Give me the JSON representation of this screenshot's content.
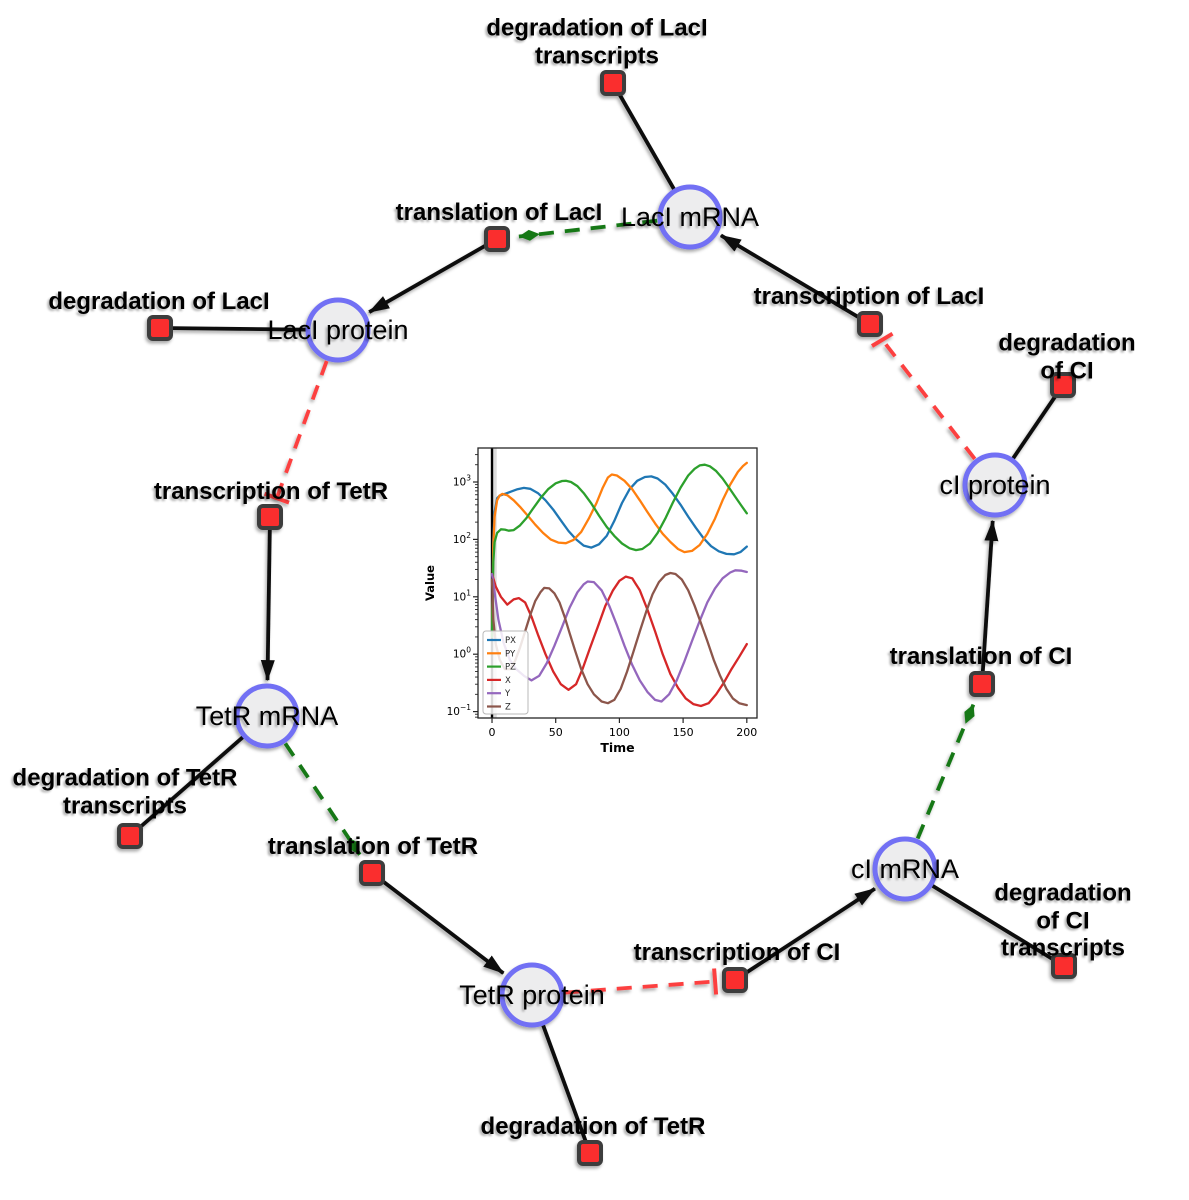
{
  "diagram": {
    "species": [
      {
        "id": "laci-mrna",
        "label": "LacI mRNA"
      },
      {
        "id": "laci-protein",
        "label": "LacI protein"
      },
      {
        "id": "tetr-mrna",
        "label": "TetR mRNA"
      },
      {
        "id": "tetr-protein",
        "label": "TetR protein"
      },
      {
        "id": "ci-mrna",
        "label": "cI mRNA"
      },
      {
        "id": "ci-protein",
        "label": "cI protein"
      }
    ],
    "reactions": [
      {
        "id": "degradation-laci-transcripts",
        "label": "degradation of LacI\ntranscripts"
      },
      {
        "id": "translation-laci",
        "label": "translation of LacI"
      },
      {
        "id": "degradation-laci",
        "label": "degradation of LacI"
      },
      {
        "id": "transcription-laci",
        "label": "transcription of LacI"
      },
      {
        "id": "degradation-ci",
        "label": "degradation of CI"
      },
      {
        "id": "transcription-tetr",
        "label": "transcription of TetR"
      },
      {
        "id": "translation-ci",
        "label": "translation of CI"
      },
      {
        "id": "degradation-tetr-transcripts",
        "label": "degradation of TetR\ntranscripts"
      },
      {
        "id": "translation-tetr",
        "label": "translation of TetR"
      },
      {
        "id": "transcription-ci",
        "label": "transcription of CI"
      },
      {
        "id": "degradation-ci-transcripts",
        "label": "degradation of CI\ntranscripts"
      },
      {
        "id": "degradation-tetr",
        "label": "degradation of TetR"
      }
    ]
  },
  "colors": {
    "edge-black": "#0d0d0d",
    "edge-green": "#187818",
    "edge-red": "#fc4040",
    "species-fill": "#ededee",
    "species-border": "#7270f4",
    "reaction-fill": "#fa2f2f",
    "reaction-border": "#3d3d3d"
  },
  "chart_data": {
    "type": "line",
    "title": "",
    "xlabel": "Time",
    "ylabel": "Value",
    "yscale": "log",
    "x_axis_range": [
      -11,
      208
    ],
    "y_axis_range_exponents": [
      -1.11,
      3.59
    ],
    "x_ticks": [
      0,
      50,
      100,
      150,
      200
    ],
    "y_ticks_exponents": [
      3,
      2,
      1,
      0,
      -1
    ],
    "legend_position": "lower left",
    "grid": false,
    "vline_x": 0,
    "series": [
      {
        "name": "PX",
        "color": "#1f77b4",
        "points": [
          [
            0,
            2
          ],
          [
            1,
            100
          ],
          [
            2,
            300
          ],
          [
            4,
            520
          ],
          [
            6,
            580
          ],
          [
            10,
            620
          ],
          [
            15,
            680
          ],
          [
            20,
            750
          ],
          [
            25,
            790
          ],
          [
            30,
            760
          ],
          [
            36,
            640
          ],
          [
            42,
            480
          ],
          [
            48,
            330
          ],
          [
            54,
            215
          ],
          [
            60,
            140
          ],
          [
            66,
            100
          ],
          [
            72,
            78
          ],
          [
            78,
            72
          ],
          [
            84,
            82
          ],
          [
            90,
            115
          ],
          [
            96,
            210
          ],
          [
            102,
            430
          ],
          [
            108,
            750
          ],
          [
            114,
            1050
          ],
          [
            120,
            1220
          ],
          [
            125,
            1250
          ],
          [
            130,
            1150
          ],
          [
            136,
            900
          ],
          [
            142,
            620
          ],
          [
            148,
            400
          ],
          [
            154,
            250
          ],
          [
            160,
            160
          ],
          [
            166,
            105
          ],
          [
            172,
            76
          ],
          [
            178,
            62
          ],
          [
            184,
            56
          ],
          [
            190,
            55
          ],
          [
            195,
            60
          ],
          [
            200,
            75
          ]
        ]
      },
      {
        "name": "PY",
        "color": "#ff7f0e",
        "points": [
          [
            0,
            2
          ],
          [
            1,
            80
          ],
          [
            2,
            250
          ],
          [
            4,
            480
          ],
          [
            6,
            580
          ],
          [
            8,
            620
          ],
          [
            12,
            590
          ],
          [
            17,
            480
          ],
          [
            22,
            370
          ],
          [
            28,
            260
          ],
          [
            34,
            180
          ],
          [
            40,
            130
          ],
          [
            46,
            100
          ],
          [
            52,
            88
          ],
          [
            58,
            86
          ],
          [
            64,
            98
          ],
          [
            70,
            135
          ],
          [
            76,
            230
          ],
          [
            82,
            430
          ],
          [
            87,
            800
          ],
          [
            91,
            1200
          ],
          [
            94,
            1350
          ],
          [
            98,
            1300
          ],
          [
            104,
            1050
          ],
          [
            110,
            750
          ],
          [
            116,
            480
          ],
          [
            122,
            300
          ],
          [
            128,
            190
          ],
          [
            134,
            125
          ],
          [
            140,
            90
          ],
          [
            146,
            68
          ],
          [
            151,
            60
          ],
          [
            157,
            63
          ],
          [
            163,
            80
          ],
          [
            169,
            125
          ],
          [
            175,
            230
          ],
          [
            181,
            480
          ],
          [
            187,
            900
          ],
          [
            193,
            1500
          ],
          [
            197,
            1900
          ],
          [
            200,
            2150
          ]
        ]
      },
      {
        "name": "PZ",
        "color": "#2ca02c",
        "points": [
          [
            0,
            2
          ],
          [
            1,
            40
          ],
          [
            2,
            90
          ],
          [
            4,
            130
          ],
          [
            7,
            150
          ],
          [
            10,
            148
          ],
          [
            13,
            142
          ],
          [
            17,
            145
          ],
          [
            22,
            175
          ],
          [
            27,
            235
          ],
          [
            32,
            340
          ],
          [
            38,
            520
          ],
          [
            44,
            750
          ],
          [
            50,
            950
          ],
          [
            55,
            1040
          ],
          [
            58,
            1050
          ],
          [
            62,
            1000
          ],
          [
            67,
            850
          ],
          [
            72,
            640
          ],
          [
            78,
            420
          ],
          [
            84,
            260
          ],
          [
            90,
            165
          ],
          [
            96,
            115
          ],
          [
            102,
            85
          ],
          [
            108,
            70
          ],
          [
            113,
            65
          ],
          [
            118,
            68
          ],
          [
            124,
            85
          ],
          [
            130,
            130
          ],
          [
            136,
            230
          ],
          [
            142,
            440
          ],
          [
            148,
            800
          ],
          [
            154,
            1300
          ],
          [
            159,
            1700
          ],
          [
            163,
            1950
          ],
          [
            167,
            2000
          ],
          [
            171,
            1880
          ],
          [
            176,
            1550
          ],
          [
            181,
            1150
          ],
          [
            186,
            800
          ],
          [
            191,
            550
          ],
          [
            196,
            380
          ],
          [
            200,
            285
          ]
        ]
      },
      {
        "name": "X",
        "color": "#d62728",
        "points": [
          [
            0,
            25
          ],
          [
            3,
            15
          ],
          [
            7,
            10
          ],
          [
            12,
            7.3
          ],
          [
            17,
            9
          ],
          [
            21,
            9.5
          ],
          [
            26,
            8
          ],
          [
            31,
            4.5
          ],
          [
            36,
            2.2
          ],
          [
            42,
            1.0
          ],
          [
            48,
            0.5
          ],
          [
            54,
            0.3
          ],
          [
            60,
            0.24
          ],
          [
            66,
            0.3
          ],
          [
            71,
            0.55
          ],
          [
            77,
            1.3
          ],
          [
            83,
            3
          ],
          [
            89,
            7
          ],
          [
            95,
            13
          ],
          [
            100,
            19
          ],
          [
            105,
            22.5
          ],
          [
            110,
            21
          ],
          [
            116,
            13
          ],
          [
            122,
            6
          ],
          [
            128,
            2.5
          ],
          [
            134,
            1.0
          ],
          [
            140,
            0.45
          ],
          [
            146,
            0.26
          ],
          [
            152,
            0.17
          ],
          [
            158,
            0.135
          ],
          [
            164,
            0.125
          ],
          [
            170,
            0.14
          ],
          [
            176,
            0.2
          ],
          [
            182,
            0.32
          ],
          [
            188,
            0.55
          ],
          [
            194,
            0.9
          ],
          [
            200,
            1.5
          ]
        ]
      },
      {
        "name": "Y",
        "color": "#9467bd",
        "points": [
          [
            0,
            25
          ],
          [
            2,
            12
          ],
          [
            5,
            4
          ],
          [
            9,
            1.6
          ],
          [
            14,
            0.8
          ],
          [
            19,
            0.55
          ],
          [
            25,
            0.42
          ],
          [
            31,
            0.35
          ],
          [
            37,
            0.42
          ],
          [
            43,
            0.7
          ],
          [
            49,
            1.4
          ],
          [
            55,
            3
          ],
          [
            61,
            6.5
          ],
          [
            67,
            12
          ],
          [
            72,
            16.5
          ],
          [
            75,
            18.5
          ],
          [
            80,
            18
          ],
          [
            86,
            13
          ],
          [
            92,
            7
          ],
          [
            98,
            3.2
          ],
          [
            104,
            1.4
          ],
          [
            110,
            0.65
          ],
          [
            116,
            0.35
          ],
          [
            122,
            0.22
          ],
          [
            128,
            0.16
          ],
          [
            133,
            0.15
          ],
          [
            139,
            0.2
          ],
          [
            145,
            0.35
          ],
          [
            151,
            0.75
          ],
          [
            157,
            1.7
          ],
          [
            163,
            3.8
          ],
          [
            169,
            8
          ],
          [
            175,
            14
          ],
          [
            181,
            21
          ],
          [
            187,
            26.5
          ],
          [
            191,
            29
          ],
          [
            196,
            28.5
          ],
          [
            200,
            27
          ]
        ]
      },
      {
        "name": "Z",
        "color": "#8c564b",
        "points": [
          [
            0,
            20
          ],
          [
            1,
            4
          ],
          [
            3,
            1.5
          ],
          [
            6,
            0.8
          ],
          [
            10,
            0.55
          ],
          [
            14,
            0.55
          ],
          [
            18,
            0.75
          ],
          [
            22,
            1.3
          ],
          [
            26,
            2.5
          ],
          [
            30,
            4.8
          ],
          [
            34,
            8.5
          ],
          [
            38,
            12
          ],
          [
            41,
            14.3
          ],
          [
            45,
            14
          ],
          [
            49,
            11.5
          ],
          [
            53,
            8
          ],
          [
            57,
            4.5
          ],
          [
            61,
            2.3
          ],
          [
            65,
            1.2
          ],
          [
            70,
            0.55
          ],
          [
            75,
            0.3
          ],
          [
            80,
            0.2
          ],
          [
            86,
            0.15
          ],
          [
            91,
            0.14
          ],
          [
            96,
            0.16
          ],
          [
            101,
            0.25
          ],
          [
            106,
            0.5
          ],
          [
            111,
            1.1
          ],
          [
            116,
            2.5
          ],
          [
            121,
            5.5
          ],
          [
            126,
            11
          ],
          [
            131,
            18
          ],
          [
            136,
            24
          ],
          [
            140,
            26
          ],
          [
            144,
            25
          ],
          [
            149,
            20
          ],
          [
            154,
            13
          ],
          [
            159,
            7
          ],
          [
            164,
            3.5
          ],
          [
            169,
            1.7
          ],
          [
            174,
            0.8
          ],
          [
            179,
            0.42
          ],
          [
            184,
            0.25
          ],
          [
            189,
            0.17
          ],
          [
            194,
            0.14
          ],
          [
            200,
            0.13
          ]
        ]
      }
    ]
  }
}
